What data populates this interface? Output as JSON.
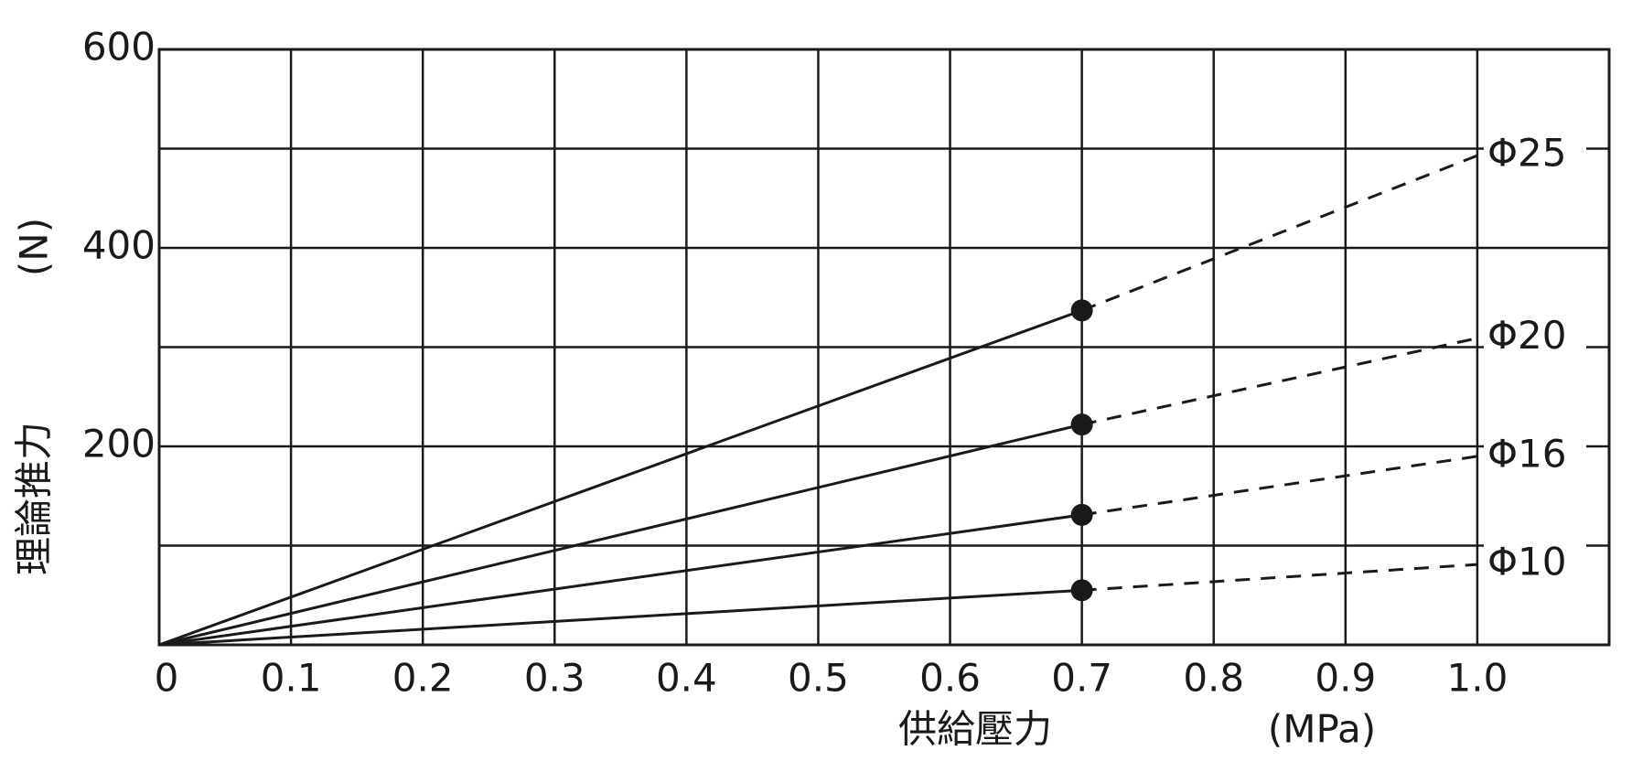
{
  "chart_data": {
    "type": "line",
    "x_label": "供給壓力",
    "x_unit": "(MPa)",
    "y_label": "理論推力",
    "y_unit": "(N)",
    "x": [
      0,
      0.7,
      1.0
    ],
    "series": [
      {
        "name": "Φ25",
        "color": "#1a1a1a",
        "values": [
          0,
          337,
          493
        ]
      },
      {
        "name": "Φ20",
        "color": "#1a1a1a",
        "values": [
          0,
          222,
          309
        ]
      },
      {
        "name": "Φ16",
        "color": "#1a1a1a",
        "values": [
          0,
          131,
          190
        ]
      },
      {
        "name": "Φ10",
        "color": "#1a1a1a",
        "values": [
          0,
          55,
          81
        ]
      }
    ],
    "marker_x": 0.7,
    "xlim": [
      0,
      1.1
    ],
    "xticks": [
      0,
      0.1,
      0.2,
      0.3,
      0.4,
      0.5,
      0.6,
      0.7,
      0.8,
      0.9,
      {
        "value": 1.0,
        "label": "1.0"
      }
    ],
    "ylim": [
      0,
      600
    ],
    "yticks": [
      200,
      400,
      600
    ],
    "yminor": [
      100,
      300,
      500
    ],
    "grid": true
  }
}
